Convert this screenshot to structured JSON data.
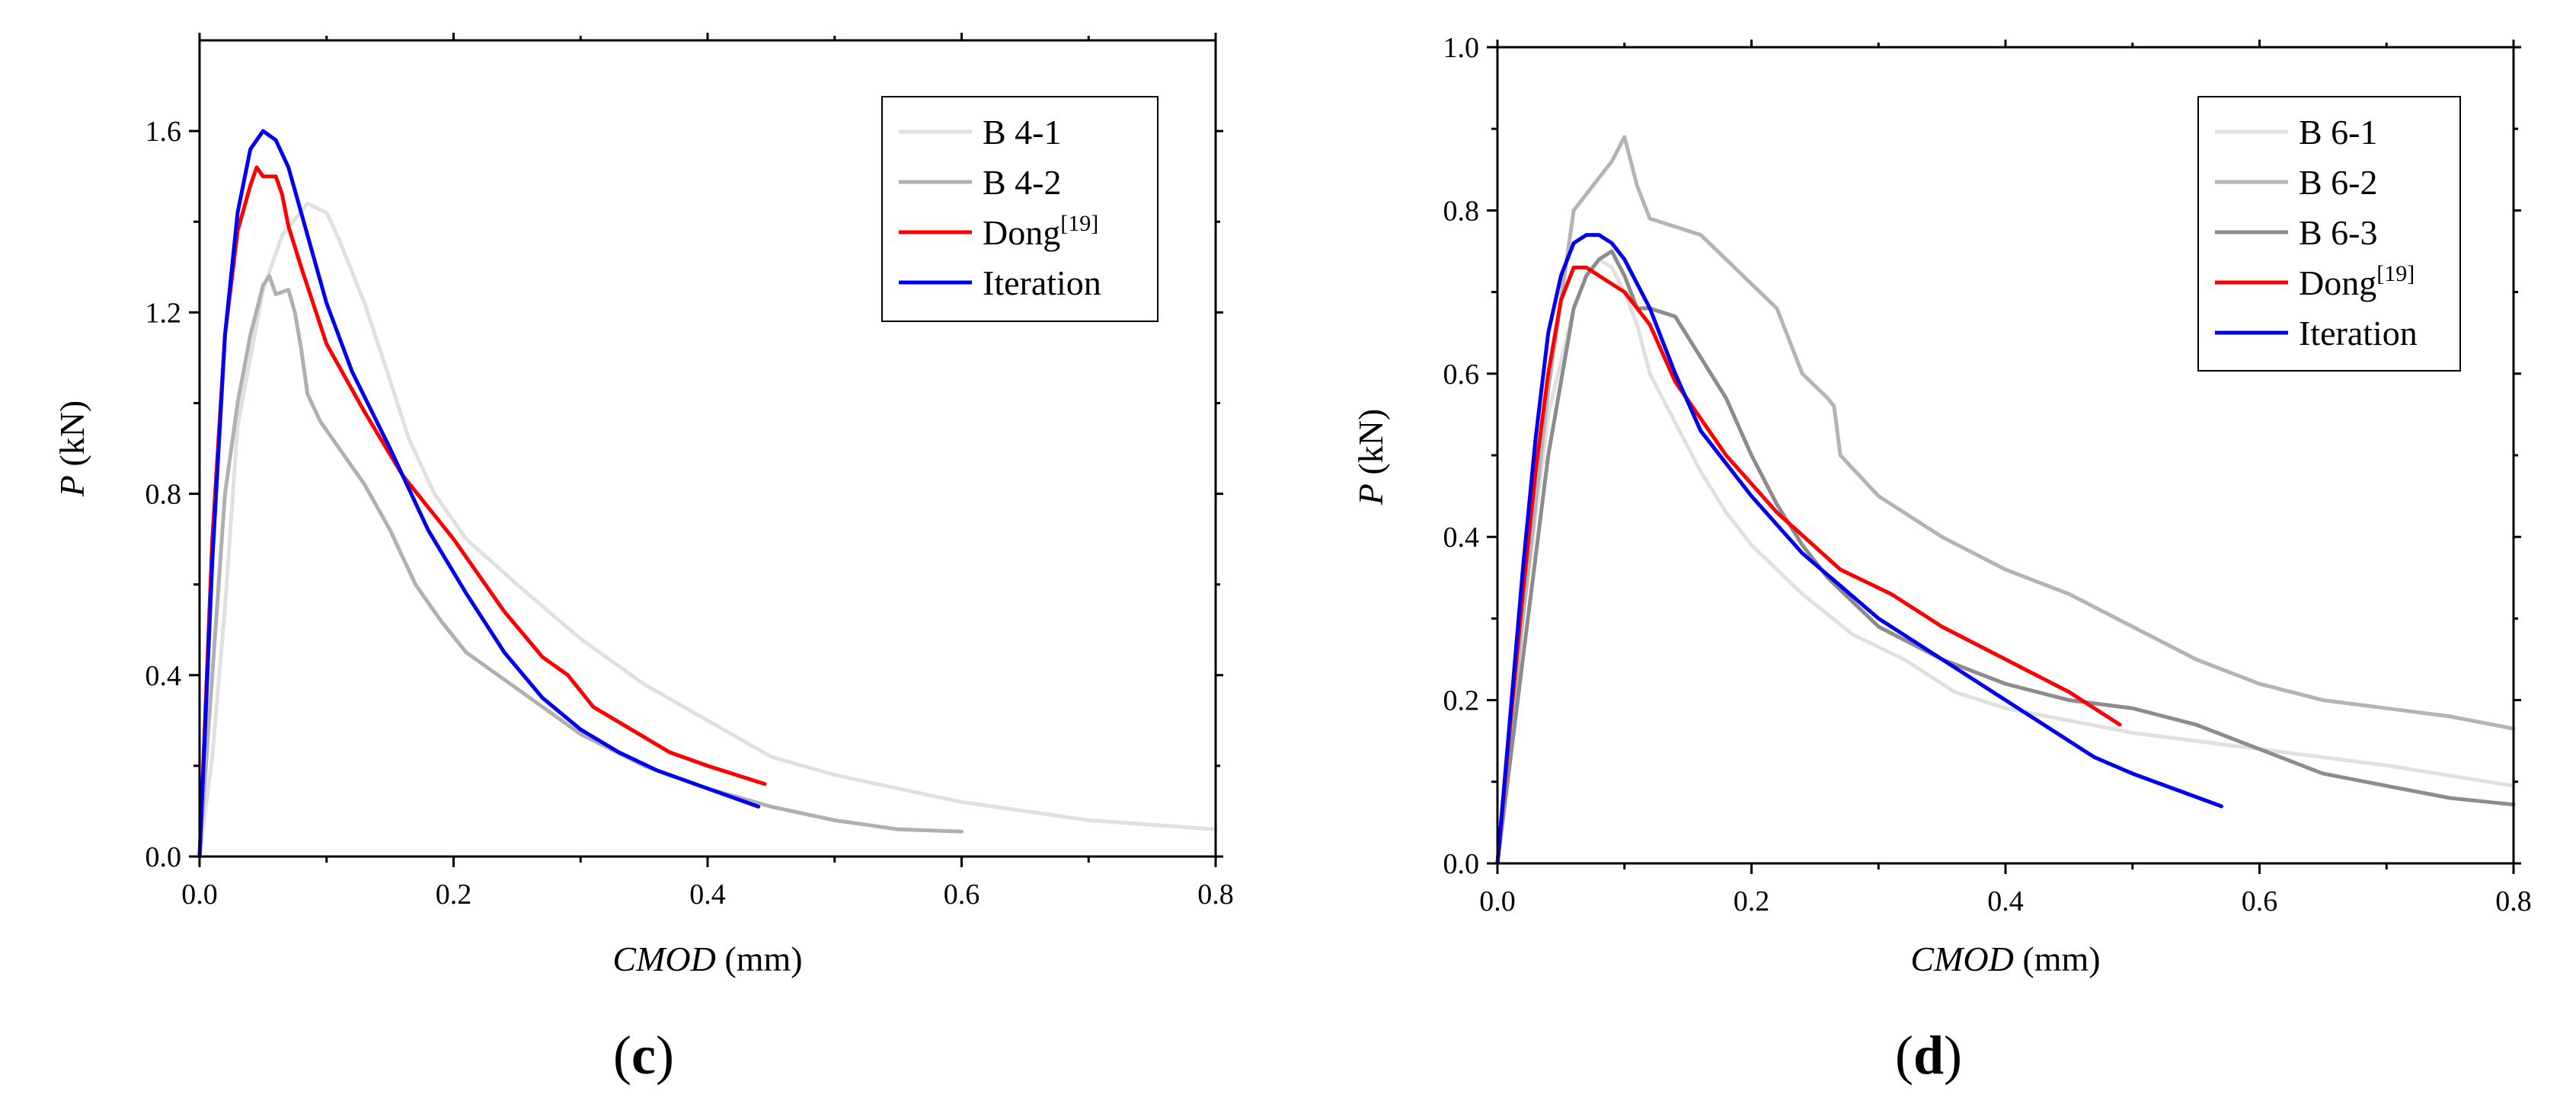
{
  "chart_data": [
    {
      "panel": "c",
      "caption_open": "(",
      "caption_letter": "c",
      "caption_close": ")",
      "type": "line",
      "xlabel_italic": "CMOD",
      "xlabel_unit": " (mm)",
      "ylabel_italic": "P",
      "ylabel_unit": " (kN)",
      "xlim": [
        0,
        0.8
      ],
      "ylim": [
        0,
        1.8
      ],
      "xticks": [
        0,
        0.2,
        0.4,
        0.6,
        0.8
      ],
      "xtick_labels": [
        "0.0",
        "0.2",
        "0.4",
        "0.6",
        "0.8"
      ],
      "yticks": [
        0,
        0.4,
        0.8,
        1.2,
        1.6
      ],
      "ytick_labels": [
        "0.0",
        "0.4",
        "0.8",
        "1.2",
        "1.6"
      ],
      "legend_position": "top-right",
      "series": [
        {
          "name": "B 4-1",
          "sup": "",
          "color": "#e0e0e0",
          "x": [
            0,
            0.01,
            0.02,
            0.03,
            0.05,
            0.065,
            0.085,
            0.1,
            0.11,
            0.13,
            0.15,
            0.165,
            0.185,
            0.21,
            0.25,
            0.3,
            0.35,
            0.4,
            0.45,
            0.5,
            0.55,
            0.6,
            0.65,
            0.7,
            0.75,
            0.8
          ],
          "y": [
            0,
            0.22,
            0.55,
            0.95,
            1.25,
            1.37,
            1.44,
            1.42,
            1.36,
            1.22,
            1.05,
            0.92,
            0.8,
            0.7,
            0.6,
            0.48,
            0.38,
            0.3,
            0.22,
            0.18,
            0.15,
            0.12,
            0.1,
            0.08,
            0.07,
            0.06
          ]
        },
        {
          "name": "B 4-2",
          "sup": "",
          "color": "#b0b0b0",
          "x": [
            0,
            0.01,
            0.02,
            0.03,
            0.04,
            0.05,
            0.055,
            0.06,
            0.07,
            0.075,
            0.08,
            0.085,
            0.095,
            0.11,
            0.13,
            0.15,
            0.17,
            0.19,
            0.21,
            0.25,
            0.3,
            0.35,
            0.4,
            0.45,
            0.5,
            0.55,
            0.6
          ],
          "y": [
            0,
            0.4,
            0.8,
            1.0,
            1.15,
            1.26,
            1.28,
            1.24,
            1.25,
            1.2,
            1.12,
            1.02,
            0.96,
            0.9,
            0.82,
            0.72,
            0.6,
            0.52,
            0.45,
            0.37,
            0.27,
            0.2,
            0.15,
            0.11,
            0.08,
            0.06,
            0.055
          ]
        },
        {
          "name": "Dong",
          "sup": "[19]",
          "color": "#ff0000",
          "x": [
            0,
            0.01,
            0.02,
            0.03,
            0.04,
            0.045,
            0.05,
            0.06,
            0.065,
            0.07,
            0.08,
            0.1,
            0.13,
            0.16,
            0.2,
            0.24,
            0.27,
            0.29,
            0.31,
            0.34,
            0.37,
            0.4,
            0.445
          ],
          "y": [
            0,
            0.7,
            1.15,
            1.38,
            1.48,
            1.52,
            1.5,
            1.5,
            1.46,
            1.39,
            1.3,
            1.13,
            0.98,
            0.84,
            0.7,
            0.54,
            0.44,
            0.4,
            0.33,
            0.28,
            0.23,
            0.2,
            0.16
          ]
        },
        {
          "name": "Iteration",
          "sup": "",
          "color": "#0000ee",
          "x": [
            0,
            0.01,
            0.02,
            0.03,
            0.04,
            0.05,
            0.06,
            0.07,
            0.08,
            0.1,
            0.12,
            0.15,
            0.18,
            0.21,
            0.24,
            0.27,
            0.3,
            0.33,
            0.36,
            0.4,
            0.44
          ],
          "y": [
            0,
            0.65,
            1.15,
            1.42,
            1.56,
            1.6,
            1.58,
            1.52,
            1.42,
            1.22,
            1.07,
            0.9,
            0.72,
            0.58,
            0.45,
            0.35,
            0.28,
            0.23,
            0.19,
            0.15,
            0.11
          ]
        }
      ]
    },
    {
      "panel": "d",
      "caption_open": "(",
      "caption_letter": "d",
      "caption_close": ")",
      "type": "line",
      "xlabel_italic": "CMOD",
      "xlabel_unit": " (mm)",
      "ylabel_italic": "P",
      "ylabel_unit": " (kN)",
      "xlim": [
        0,
        0.8
      ],
      "ylim": [
        0,
        1.0
      ],
      "xticks": [
        0,
        0.2,
        0.4,
        0.6,
        0.8
      ],
      "xtick_labels": [
        "0.0",
        "0.2",
        "0.4",
        "0.6",
        "0.8"
      ],
      "yticks": [
        0,
        0.2,
        0.4,
        0.6,
        0.8,
        1.0
      ],
      "ytick_labels": [
        "0.0",
        "0.2",
        "0.4",
        "0.6",
        "0.8",
        "1.0"
      ],
      "legend_position": "top-right",
      "series": [
        {
          "name": "B 6-1",
          "sup": "",
          "color": "#e0e0e0",
          "x": [
            0,
            0.02,
            0.04,
            0.06,
            0.07,
            0.08,
            0.09,
            0.1,
            0.11,
            0.12,
            0.14,
            0.16,
            0.18,
            0.2,
            0.24,
            0.28,
            0.32,
            0.36,
            0.4,
            0.5,
            0.6,
            0.7,
            0.8
          ],
          "y": [
            0,
            0.3,
            0.55,
            0.68,
            0.72,
            0.74,
            0.73,
            0.7,
            0.66,
            0.6,
            0.54,
            0.48,
            0.43,
            0.39,
            0.33,
            0.28,
            0.25,
            0.21,
            0.19,
            0.16,
            0.14,
            0.12,
            0.095
          ]
        },
        {
          "name": "B 6-2",
          "sup": "",
          "color": "#b4b4b4",
          "x": [
            0,
            0.02,
            0.04,
            0.06,
            0.08,
            0.09,
            0.1,
            0.11,
            0.12,
            0.14,
            0.16,
            0.18,
            0.2,
            0.22,
            0.23,
            0.24,
            0.26,
            0.265,
            0.27,
            0.3,
            0.35,
            0.4,
            0.45,
            0.5,
            0.55,
            0.6,
            0.65,
            0.7,
            0.75,
            0.8
          ],
          "y": [
            0,
            0.3,
            0.58,
            0.8,
            0.84,
            0.86,
            0.89,
            0.83,
            0.79,
            0.78,
            0.77,
            0.74,
            0.71,
            0.68,
            0.64,
            0.6,
            0.57,
            0.56,
            0.5,
            0.45,
            0.4,
            0.36,
            0.33,
            0.29,
            0.25,
            0.22,
            0.2,
            0.19,
            0.18,
            0.165
          ]
        },
        {
          "name": "B 6-3",
          "sup": "",
          "color": "#8c8c8c",
          "x": [
            0,
            0.02,
            0.04,
            0.06,
            0.07,
            0.08,
            0.09,
            0.1,
            0.11,
            0.12,
            0.14,
            0.16,
            0.18,
            0.2,
            0.22,
            0.24,
            0.26,
            0.3,
            0.35,
            0.4,
            0.45,
            0.5,
            0.55,
            0.6,
            0.65,
            0.7,
            0.75,
            0.8
          ],
          "y": [
            0,
            0.25,
            0.5,
            0.68,
            0.72,
            0.74,
            0.75,
            0.72,
            0.68,
            0.68,
            0.67,
            0.62,
            0.57,
            0.5,
            0.44,
            0.39,
            0.35,
            0.29,
            0.25,
            0.22,
            0.2,
            0.19,
            0.17,
            0.14,
            0.11,
            0.095,
            0.08,
            0.072
          ]
        },
        {
          "name": "Dong",
          "sup": "[19]",
          "color": "#ff0000",
          "x": [
            0,
            0.01,
            0.02,
            0.03,
            0.04,
            0.05,
            0.06,
            0.07,
            0.08,
            0.1,
            0.12,
            0.14,
            0.18,
            0.22,
            0.27,
            0.31,
            0.35,
            0.4,
            0.45,
            0.49
          ],
          "y": [
            0,
            0.17,
            0.33,
            0.48,
            0.6,
            0.69,
            0.73,
            0.73,
            0.72,
            0.7,
            0.66,
            0.59,
            0.5,
            0.43,
            0.36,
            0.33,
            0.29,
            0.25,
            0.21,
            0.17
          ]
        },
        {
          "name": "Iteration",
          "sup": "",
          "color": "#0000ee",
          "x": [
            0,
            0.01,
            0.02,
            0.03,
            0.04,
            0.05,
            0.06,
            0.07,
            0.08,
            0.09,
            0.1,
            0.12,
            0.14,
            0.16,
            0.2,
            0.24,
            0.3,
            0.36,
            0.42,
            0.47,
            0.5,
            0.57
          ],
          "y": [
            0,
            0.18,
            0.36,
            0.52,
            0.65,
            0.72,
            0.76,
            0.77,
            0.77,
            0.76,
            0.74,
            0.68,
            0.6,
            0.53,
            0.45,
            0.38,
            0.3,
            0.24,
            0.18,
            0.13,
            0.11,
            0.07
          ]
        }
      ]
    }
  ]
}
